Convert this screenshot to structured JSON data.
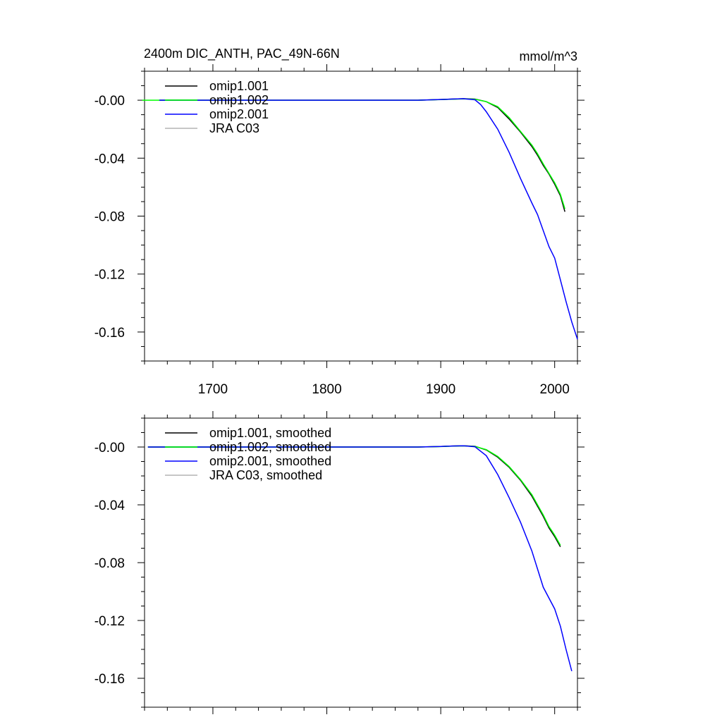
{
  "figure": {
    "title": "2400m DIC_ANTH, PAC_49N-66N",
    "units": "mmol/m^3"
  },
  "colors": {
    "omip1_001": "#000000",
    "omip1_002": "#00ff00",
    "omip2_001": "#0000ff",
    "jra_c03": "#b4b4b4"
  },
  "chart_data": [
    {
      "type": "line",
      "title": "2400m DIC_ANTH, PAC_49N-66N",
      "units": "mmol/m^3",
      "xlabel": "",
      "ylabel": "",
      "xlim": [
        1640,
        2020
      ],
      "ylim": [
        -0.18,
        0.02
      ],
      "x_ticks": [
        1700,
        1800,
        1900,
        2000
      ],
      "x_tick_labels": [
        "1700",
        "1800",
        "1900",
        "2000"
      ],
      "y_ticks": [
        0.0,
        -0.04,
        -0.08,
        -0.12,
        -0.16
      ],
      "y_tick_labels": [
        "-0.00",
        "-0.04",
        "-0.08",
        "-0.12",
        "-0.16"
      ],
      "legend": "top-left",
      "grid": false,
      "series": [
        {
          "name": "omip1.001",
          "color": "#000000",
          "x": [
            1653,
            1880,
            1900,
            1910,
            1920,
            1930,
            1940,
            1950,
            1960,
            1970,
            1980,
            1985,
            1990,
            1995,
            2000,
            2005,
            2009
          ],
          "y": [
            0,
            0,
            0.0005,
            0.0008,
            0.001,
            0.0008,
            -0.001,
            -0.005,
            -0.013,
            -0.022,
            -0.032,
            -0.038,
            -0.045,
            -0.051,
            -0.058,
            -0.066,
            -0.077
          ]
        },
        {
          "name": "omip1.002",
          "color": "#00ff00",
          "x": [
            1638,
            1880,
            1900,
            1910,
            1920,
            1930,
            1940,
            1950,
            1960,
            1970,
            1980,
            1985,
            1990,
            1995,
            2000,
            2005,
            2009
          ],
          "y": [
            0,
            0,
            0.0004,
            0.0007,
            0.0009,
            0.0007,
            -0.001,
            -0.0045,
            -0.012,
            -0.0215,
            -0.031,
            -0.037,
            -0.044,
            -0.0505,
            -0.057,
            -0.065,
            -0.075
          ]
        },
        {
          "name": "omip2.001",
          "color": "#0000ff",
          "x": [
            1653,
            1880,
            1900,
            1910,
            1920,
            1930,
            1935,
            1940,
            1950,
            1960,
            1970,
            1980,
            1985,
            1990,
            1995,
            2000,
            2005,
            2010,
            2015,
            2020
          ],
          "y": [
            0,
            0,
            0.0005,
            0.0008,
            0.001,
            0.0003,
            -0.003,
            -0.008,
            -0.02,
            -0.036,
            -0.054,
            -0.071,
            -0.079,
            -0.09,
            -0.101,
            -0.109,
            -0.124,
            -0.139,
            -0.153,
            -0.165
          ]
        },
        {
          "name": "JRA C03",
          "color": "#b4b4b4",
          "x": [],
          "y": []
        }
      ]
    },
    {
      "type": "line",
      "title": "",
      "xlabel": "",
      "ylabel": "",
      "xlim": [
        1640,
        2020
      ],
      "ylim": [
        -0.18,
        0.02
      ],
      "x_ticks": [
        1700,
        1800,
        1900,
        2000
      ],
      "x_tick_labels": [],
      "y_ticks": [
        0.0,
        -0.04,
        -0.08,
        -0.12,
        -0.16
      ],
      "y_tick_labels": [
        "-0.00",
        "-0.04",
        "-0.08",
        "-0.12",
        "-0.16"
      ],
      "legend": "top-left",
      "grid": false,
      "series": [
        {
          "name": "omip1.001, smoothed",
          "color": "#000000",
          "x": [
            1643,
            1880,
            1900,
            1910,
            1920,
            1930,
            1940,
            1950,
            1960,
            1970,
            1980,
            1990,
            1995,
            2000,
            2005
          ],
          "y": [
            0,
            0,
            0.0004,
            0.0007,
            0.0009,
            0.0005,
            -0.002,
            -0.007,
            -0.014,
            -0.023,
            -0.034,
            -0.048,
            -0.056,
            -0.062,
            -0.069
          ]
        },
        {
          "name": "omip1.002, smoothed",
          "color": "#00ff00",
          "x": [
            1643,
            1880,
            1900,
            1910,
            1920,
            1930,
            1940,
            1950,
            1960,
            1970,
            1980,
            1990,
            1995,
            2000,
            2005
          ],
          "y": [
            0,
            0,
            0.0003,
            0.0006,
            0.0008,
            0.0004,
            -0.0018,
            -0.0065,
            -0.0135,
            -0.0225,
            -0.033,
            -0.047,
            -0.055,
            -0.061,
            -0.068
          ]
        },
        {
          "name": "omip2.001, smoothed",
          "color": "#0000ff",
          "x": [
            1643,
            1880,
            1900,
            1910,
            1920,
            1930,
            1940,
            1950,
            1960,
            1970,
            1980,
            1990,
            2000,
            2005,
            2010,
            2015
          ],
          "y": [
            0,
            0,
            0.0004,
            0.0007,
            0.0009,
            0.0002,
            -0.006,
            -0.019,
            -0.035,
            -0.052,
            -0.072,
            -0.097,
            -0.112,
            -0.124,
            -0.14,
            -0.155
          ]
        },
        {
          "name": "JRA C03, smoothed",
          "color": "#b4b4b4",
          "x": [],
          "y": []
        }
      ]
    }
  ]
}
